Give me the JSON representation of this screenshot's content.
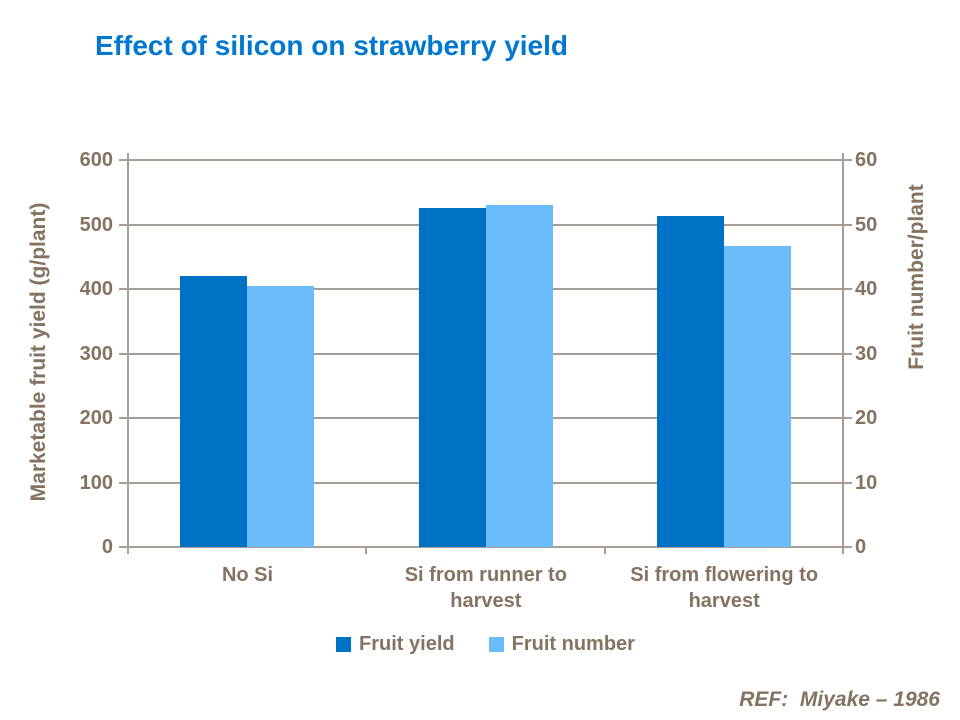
{
  "page": {
    "background": "#FFFFFF"
  },
  "chart_data": {
    "type": "bar",
    "title": "Effect of silicon on strawberry yield",
    "categories": [
      "No Si",
      "Si from runner to harvest",
      "Si from flowering to harvest"
    ],
    "series": [
      {
        "name": "Fruit yield",
        "axis": "left",
        "color": "#0072C6",
        "values": [
          420,
          525,
          513
        ]
      },
      {
        "name": "Fruit number",
        "axis": "right",
        "color": "#6ABDFA",
        "values": [
          40.5,
          53.0,
          46.7
        ]
      }
    ],
    "left_axis": {
      "label": "Marketable fruit yield (g/plant)",
      "min": 0,
      "max": 600,
      "step": 100,
      "ticks": [
        "600",
        "500",
        "400",
        "300",
        "200",
        "100",
        "0"
      ]
    },
    "right_axis": {
      "label": "Fruit number/plant",
      "min": 0,
      "max": 60,
      "step": 10,
      "ticks": [
        "60",
        "50",
        "40",
        "30",
        "20",
        "10",
        "0"
      ]
    },
    "legend": [
      "Fruit yield",
      "Fruit number"
    ],
    "legend_position": "bottom",
    "grid": true
  },
  "footer": {
    "ref": "REF:  Miyake – 1986"
  },
  "colors": {
    "title_blue": "#0078CF",
    "axis_text_brown": "#857361",
    "gridline": "#A79D95",
    "fruit_yield_bar": "#0072C6",
    "fruit_number_bar": "#6ABDFA"
  }
}
